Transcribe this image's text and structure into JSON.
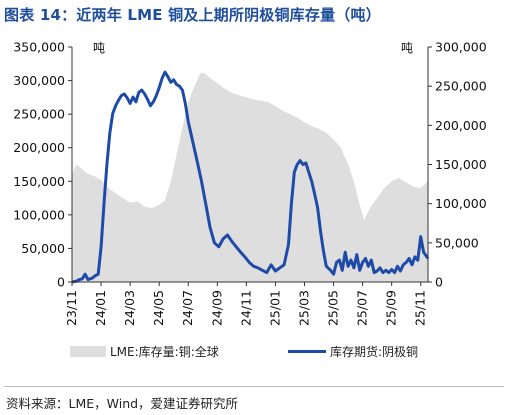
{
  "figure": {
    "title": "图表 14：近两年 LME 铜及上期所阴极铜库存量（吨）",
    "source": "资料来源：LME，Wind，爱建证券研究所"
  },
  "chart_data": {
    "type": "area+line",
    "units_left": "吨",
    "units_right": "吨",
    "x_ticks": [
      "23/11",
      "24/01",
      "24/03",
      "24/05",
      "24/07",
      "24/09",
      "24/11",
      "25/01",
      "25/03",
      "25/05",
      "25/07",
      "25/09",
      "25/11"
    ],
    "x_range": [
      0,
      24.5
    ],
    "y_left": {
      "min": 0,
      "max": 350000,
      "ticks": [
        0,
        50000,
        100000,
        150000,
        200000,
        250000,
        300000,
        350000
      ],
      "tick_labels": [
        "0",
        "50,000",
        "100,000",
        "150,000",
        "200,000",
        "250,000",
        "300,000",
        "350,000"
      ]
    },
    "y_right": {
      "min": 0,
      "max": 300000,
      "ticks": [
        0,
        50000,
        100000,
        150000,
        200000,
        250000,
        300000
      ],
      "tick_labels": [
        "0",
        "50,000",
        "100,000",
        "150,000",
        "200,000",
        "250,000",
        "300,000"
      ]
    },
    "series": [
      {
        "name": "LME:库存量:铜:全球",
        "axis": "left",
        "style": "area",
        "color": "#dedede",
        "points": [
          [
            0.0,
            160000
          ],
          [
            0.3,
            175000
          ],
          [
            0.6,
            170000
          ],
          [
            1.0,
            162000
          ],
          [
            1.5,
            158000
          ],
          [
            2.0,
            152000
          ],
          [
            2.5,
            140000
          ],
          [
            3.0,
            132000
          ],
          [
            3.5,
            125000
          ],
          [
            4.0,
            118000
          ],
          [
            4.5,
            120000
          ],
          [
            5.0,
            112000
          ],
          [
            5.5,
            110000
          ],
          [
            6.0,
            115000
          ],
          [
            6.4,
            122000
          ],
          [
            6.8,
            150000
          ],
          [
            7.1,
            180000
          ],
          [
            7.4,
            210000
          ],
          [
            7.7,
            240000
          ],
          [
            8.0,
            268000
          ],
          [
            8.3,
            285000
          ],
          [
            8.6,
            300000
          ],
          [
            8.8,
            310000
          ],
          [
            9.0,
            312000
          ],
          [
            9.3,
            308000
          ],
          [
            9.6,
            302000
          ],
          [
            10.0,
            296000
          ],
          [
            10.5,
            288000
          ],
          [
            11.0,
            282000
          ],
          [
            11.5,
            278000
          ],
          [
            12.0,
            275000
          ],
          [
            12.5,
            272000
          ],
          [
            13.0,
            270000
          ],
          [
            13.5,
            268000
          ],
          [
            14.0,
            262000
          ],
          [
            14.5,
            255000
          ],
          [
            15.0,
            250000
          ],
          [
            15.5,
            245000
          ],
          [
            16.0,
            238000
          ],
          [
            16.5,
            232000
          ],
          [
            17.0,
            228000
          ],
          [
            17.5,
            222000
          ],
          [
            18.0,
            212000
          ],
          [
            18.5,
            200000
          ],
          [
            19.0,
            175000
          ],
          [
            19.4,
            150000
          ],
          [
            19.8,
            115000
          ],
          [
            20.1,
            92000
          ],
          [
            20.5,
            110000
          ],
          [
            21.0,
            125000
          ],
          [
            21.5,
            140000
          ],
          [
            22.0,
            150000
          ],
          [
            22.5,
            155000
          ],
          [
            23.0,
            148000
          ],
          [
            23.5,
            142000
          ],
          [
            24.0,
            140000
          ],
          [
            24.5,
            150000
          ]
        ]
      },
      {
        "name": "库存期货:阴极铜",
        "axis": "right",
        "style": "line",
        "color": "#1e4aa8",
        "points": [
          [
            0.0,
            0
          ],
          [
            0.3,
            1000
          ],
          [
            0.5,
            3000
          ],
          [
            0.7,
            4000
          ],
          [
            0.9,
            10000
          ],
          [
            1.1,
            3000
          ],
          [
            1.4,
            5000
          ],
          [
            1.6,
            8000
          ],
          [
            1.8,
            10000
          ],
          [
            2.0,
            45000
          ],
          [
            2.2,
            100000
          ],
          [
            2.4,
            150000
          ],
          [
            2.6,
            190000
          ],
          [
            2.8,
            215000
          ],
          [
            3.0,
            225000
          ],
          [
            3.2,
            232000
          ],
          [
            3.4,
            238000
          ],
          [
            3.6,
            240000
          ],
          [
            3.8,
            235000
          ],
          [
            4.0,
            228000
          ],
          [
            4.2,
            236000
          ],
          [
            4.4,
            230000
          ],
          [
            4.6,
            242000
          ],
          [
            4.8,
            245000
          ],
          [
            5.0,
            240000
          ],
          [
            5.2,
            233000
          ],
          [
            5.4,
            225000
          ],
          [
            5.6,
            230000
          ],
          [
            5.8,
            238000
          ],
          [
            6.0,
            248000
          ],
          [
            6.2,
            260000
          ],
          [
            6.4,
            268000
          ],
          [
            6.6,
            262000
          ],
          [
            6.8,
            255000
          ],
          [
            7.0,
            258000
          ],
          [
            7.2,
            252000
          ],
          [
            7.4,
            250000
          ],
          [
            7.6,
            245000
          ],
          [
            7.8,
            228000
          ],
          [
            8.0,
            205000
          ],
          [
            8.3,
            180000
          ],
          [
            8.6,
            155000
          ],
          [
            8.9,
            130000
          ],
          [
            9.2,
            100000
          ],
          [
            9.5,
            70000
          ],
          [
            9.8,
            50000
          ],
          [
            10.1,
            45000
          ],
          [
            10.4,
            55000
          ],
          [
            10.7,
            60000
          ],
          [
            11.0,
            52000
          ],
          [
            11.3,
            45000
          ],
          [
            11.6,
            38000
          ],
          [
            11.9,
            32000
          ],
          [
            12.2,
            25000
          ],
          [
            12.5,
            20000
          ],
          [
            12.8,
            18000
          ],
          [
            13.1,
            15000
          ],
          [
            13.4,
            12000
          ],
          [
            13.7,
            22000
          ],
          [
            14.0,
            14000
          ],
          [
            14.3,
            18000
          ],
          [
            14.6,
            22000
          ],
          [
            14.9,
            48000
          ],
          [
            15.1,
            100000
          ],
          [
            15.3,
            140000
          ],
          [
            15.5,
            150000
          ],
          [
            15.7,
            155000
          ],
          [
            15.9,
            150000
          ],
          [
            16.1,
            152000
          ],
          [
            16.3,
            140000
          ],
          [
            16.5,
            128000
          ],
          [
            16.7,
            112000
          ],
          [
            16.9,
            95000
          ],
          [
            17.1,
            65000
          ],
          [
            17.3,
            40000
          ],
          [
            17.5,
            20000
          ],
          [
            17.8,
            15000
          ],
          [
            18.0,
            10000
          ],
          [
            18.2,
            25000
          ],
          [
            18.4,
            28000
          ],
          [
            18.6,
            15000
          ],
          [
            18.8,
            38000
          ],
          [
            19.0,
            20000
          ],
          [
            19.2,
            28000
          ],
          [
            19.4,
            18000
          ],
          [
            19.6,
            35000
          ],
          [
            19.8,
            15000
          ],
          [
            20.0,
            25000
          ],
          [
            20.2,
            30000
          ],
          [
            20.4,
            20000
          ],
          [
            20.6,
            28000
          ],
          [
            20.8,
            12000
          ],
          [
            21.0,
            14000
          ],
          [
            21.2,
            18000
          ],
          [
            21.4,
            12000
          ],
          [
            21.6,
            15000
          ],
          [
            21.8,
            12000
          ],
          [
            22.0,
            16000
          ],
          [
            22.2,
            12000
          ],
          [
            22.4,
            20000
          ],
          [
            22.6,
            14000
          ],
          [
            22.8,
            22000
          ],
          [
            23.0,
            25000
          ],
          [
            23.2,
            30000
          ],
          [
            23.4,
            22000
          ],
          [
            23.6,
            32000
          ],
          [
            23.8,
            28000
          ],
          [
            24.0,
            58000
          ],
          [
            24.2,
            38000
          ],
          [
            24.5,
            30000
          ]
        ]
      }
    ]
  }
}
